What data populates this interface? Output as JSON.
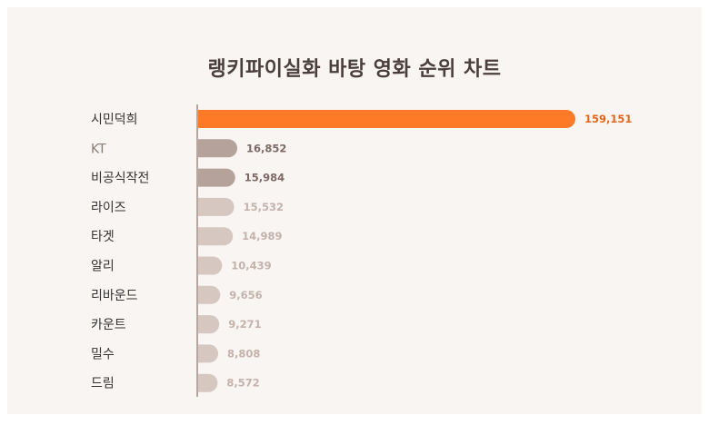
{
  "chart_data": {
    "type": "bar",
    "orientation": "horizontal",
    "title": "랭키파이실화 바탕 영화 순위 차트",
    "categories": [
      "시민덕희",
      "KT",
      "비공식작전",
      "라이즈",
      "타겟",
      "알리",
      "리바운드",
      "카운트",
      "밀수",
      "드림"
    ],
    "values": [
      159151,
      16852,
      15984,
      15532,
      14989,
      10439,
      9656,
      9271,
      8808,
      8572
    ],
    "value_labels": [
      "159,151",
      "16,852",
      "15,984",
      "15,532",
      "14,989",
      "10,439",
      "9,656",
      "9,271",
      "8,808",
      "8,572"
    ],
    "xlim": [
      0,
      159151
    ],
    "grid": false,
    "legend": "none",
    "colors": {
      "top": "#ff7a26",
      "mid": "#b5a29b",
      "low": "#d6c7c0",
      "top_label": "#e2671b",
      "mid_label": "#7d6a64",
      "low_label": "#c4b3ab",
      "category": "#333333",
      "category_muted": "#8c7c77",
      "axis": "#b6a7a1"
    }
  }
}
